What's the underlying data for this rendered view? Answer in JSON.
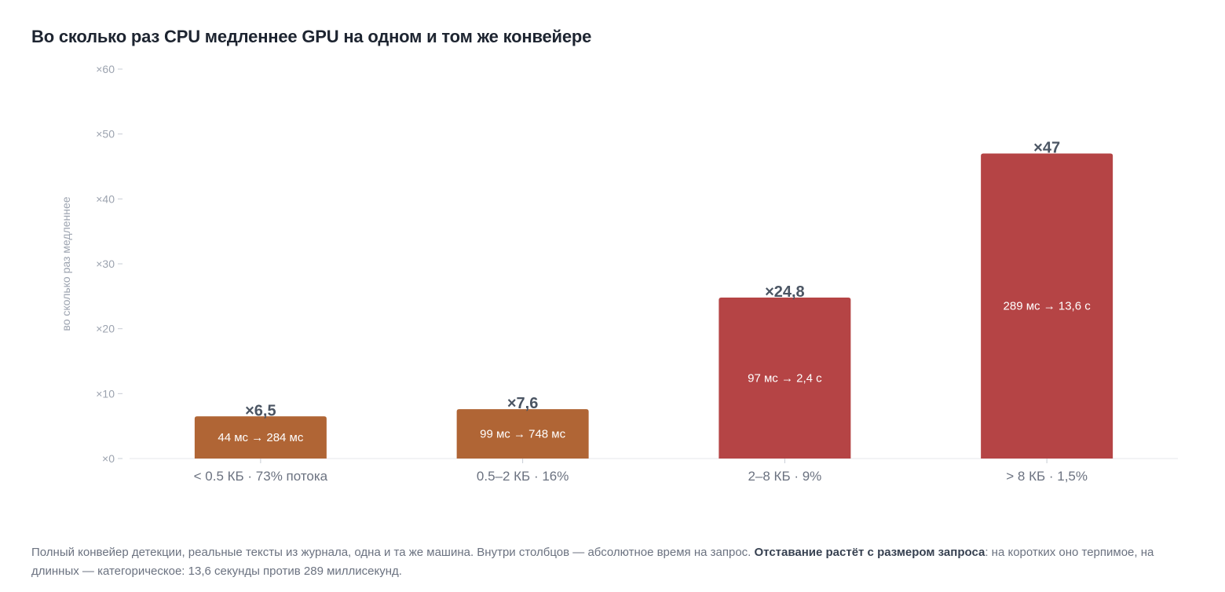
{
  "title": "Во сколько раз CPU медленнее GPU на одном и том же конвейере",
  "chart_data": {
    "type": "bar",
    "categories": [
      "< 0.5 КБ · 73% потока",
      "0.5–2 КБ · 16%",
      "2–8 КБ · 9%",
      "> 8 КБ · 1,5%"
    ],
    "values": [
      6.5,
      7.6,
      24.8,
      47
    ],
    "value_labels": [
      "×6,5",
      "×7,6",
      "×24,8",
      "×47"
    ],
    "inner_labels": [
      "44 мс → 284 мс",
      "99 мс → 748 мс",
      "97 мс → 2,4 с",
      "289 мс → 13,6 с"
    ],
    "bar_colors": [
      "#b06535",
      "#b06535",
      "#b54445",
      "#b54445"
    ],
    "ylabel": "во сколько раз медленнее",
    "ylim": [
      0,
      60
    ],
    "yticks": [
      0,
      10,
      20,
      30,
      40,
      50,
      60
    ],
    "ytick_labels": [
      "×0",
      "×10",
      "×20",
      "×30",
      "×40",
      "×50",
      "×60"
    ],
    "grid": false
  },
  "caption": {
    "part1": "Полный конвейер детекции, реальные тексты из журнала, одна и та же машина. Внутри столбцов — абсолютное время на запрос. ",
    "bold": "Отставание растёт с размером запроса",
    "part2": ": на коротких оно терпимое, на длинных — категорическое: 13,6 секунды против 289 миллисекунд."
  },
  "colors": {
    "axis_text": "#9ca3af",
    "value_label": "#4b5563",
    "category_label": "#6b7280",
    "axis_line": "#e5e7eb"
  }
}
